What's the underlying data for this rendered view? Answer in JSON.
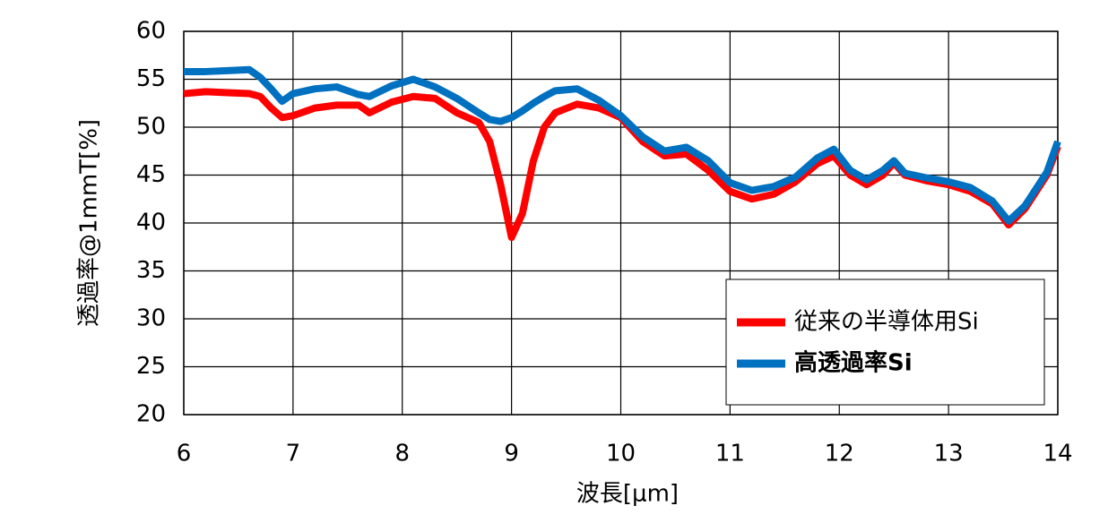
{
  "chart_data": {
    "type": "line",
    "x_label": "波長[μm]",
    "y_label": "透過率@1mmT[%]",
    "x": [
      6,
      6.2,
      6.4,
      6.6,
      6.7,
      6.8,
      6.9,
      7,
      7.2,
      7.4,
      7.6,
      7.7,
      7.9,
      8.1,
      8.3,
      8.5,
      8.7,
      8.8,
      8.9,
      9,
      9.1,
      9.2,
      9.3,
      9.4,
      9.6,
      9.8,
      10,
      10.2,
      10.4,
      10.6,
      10.8,
      11,
      11.2,
      11.4,
      11.6,
      11.8,
      11.95,
      12.1,
      12.25,
      12.4,
      12.5,
      12.6,
      12.8,
      13,
      13.2,
      13.4,
      13.55,
      13.7,
      13.9,
      14
    ],
    "series": [
      {
        "name": "従来の半導体用Si",
        "color": "#ff0000",
        "label_color": "#000000",
        "label_bold": false,
        "values": [
          53.5,
          53.7,
          53.6,
          53.5,
          53.2,
          52,
          51,
          51.2,
          52,
          52.3,
          52.3,
          51.5,
          52.6,
          53.2,
          53,
          51.5,
          50.5,
          48.5,
          44,
          38.5,
          41,
          46.5,
          50,
          51.5,
          52.4,
          52,
          51,
          48.5,
          47,
          47.2,
          45.5,
          43.3,
          42.5,
          43,
          44.3,
          46.2,
          47,
          45,
          44,
          45,
          46.3,
          45,
          44.4,
          44,
          43.3,
          42,
          39.8,
          41.5,
          45,
          48
        ]
      },
      {
        "name": "高透過率Si",
        "color": "#0070c0",
        "label_color": "#ff0000",
        "label_bold": true,
        "values": [
          55.8,
          55.8,
          55.9,
          56,
          55.2,
          54,
          52.7,
          53.5,
          54,
          54.2,
          53.4,
          53.2,
          54.3,
          55,
          54.2,
          53,
          51.5,
          50.8,
          50.6,
          51,
          51.7,
          52.5,
          53.2,
          53.8,
          54,
          52.8,
          51.2,
          49,
          47.5,
          47.9,
          46.5,
          44.2,
          43.4,
          43.8,
          44.8,
          46.8,
          47.7,
          45.5,
          44.5,
          45.5,
          46.5,
          45.2,
          44.7,
          44.3,
          43.7,
          42.3,
          40.2,
          41.8,
          45.3,
          48.5
        ]
      }
    ],
    "xlim": [
      6,
      14
    ],
    "xticks": [
      6,
      7,
      8,
      9,
      10,
      11,
      12,
      13,
      14
    ],
    "ylim": [
      20,
      60
    ],
    "yticks": [
      20,
      25,
      30,
      35,
      40,
      45,
      50,
      55,
      60
    ],
    "grid": true,
    "legend": "lower-right"
  }
}
